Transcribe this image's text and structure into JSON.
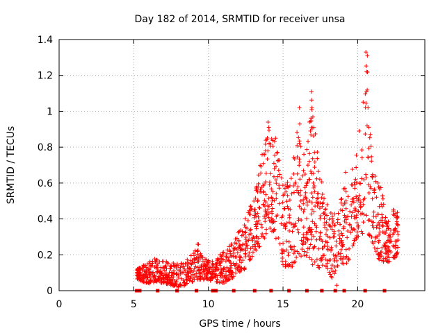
{
  "chart_data": {
    "type": "scatter",
    "title": "Day 182 of 2014, SRMTID for receiver unsa",
    "xlabel": "GPS time / hours",
    "ylabel": "SRMTID / TECUs",
    "xlim": [
      0,
      24.5
    ],
    "ylim": [
      0,
      1.4
    ],
    "xticks": [
      0,
      5,
      10,
      15,
      20
    ],
    "yticks": [
      0,
      0.2,
      0.4,
      0.6,
      0.8,
      1,
      1.2,
      1.4
    ],
    "xtick_labels": [
      "0",
      "5",
      "10",
      "15",
      "20"
    ],
    "ytick_labels": [
      "0",
      "0.2",
      "0.4",
      "0.6",
      "0.8",
      "1",
      "1.2",
      "1.4"
    ],
    "grid": true,
    "marker": "+",
    "color": "#ff0000",
    "series": [
      {
        "name": "SRMTID",
        "envelope": [
          {
            "x": 5.2,
            "lo": 0.06,
            "hi": 0.12
          },
          {
            "x": 5.6,
            "lo": 0.05,
            "hi": 0.14
          },
          {
            "x": 6.0,
            "lo": 0.04,
            "hi": 0.17
          },
          {
            "x": 6.5,
            "lo": 0.05,
            "hi": 0.18
          },
          {
            "x": 7.0,
            "lo": 0.04,
            "hi": 0.17
          },
          {
            "x": 7.5,
            "lo": 0.03,
            "hi": 0.16
          },
          {
            "x": 8.0,
            "lo": 0.02,
            "hi": 0.15
          },
          {
            "x": 8.5,
            "lo": 0.03,
            "hi": 0.17
          },
          {
            "x": 9.0,
            "lo": 0.05,
            "hi": 0.21
          },
          {
            "x": 9.3,
            "lo": 0.06,
            "hi": 0.28
          },
          {
            "x": 9.7,
            "lo": 0.06,
            "hi": 0.18
          },
          {
            "x": 10.5,
            "lo": 0.05,
            "hi": 0.17
          },
          {
            "x": 11.0,
            "lo": 0.04,
            "hi": 0.22
          },
          {
            "x": 11.5,
            "lo": 0.06,
            "hi": 0.26
          },
          {
            "x": 12.0,
            "lo": 0.1,
            "hi": 0.34
          },
          {
            "x": 12.5,
            "lo": 0.12,
            "hi": 0.42
          },
          {
            "x": 13.0,
            "lo": 0.2,
            "hi": 0.5
          },
          {
            "x": 13.5,
            "lo": 0.25,
            "hi": 0.72
          },
          {
            "x": 13.8,
            "lo": 0.3,
            "hi": 0.86
          },
          {
            "x": 14.1,
            "lo": 0.34,
            "hi": 0.94
          },
          {
            "x": 14.5,
            "lo": 0.3,
            "hi": 0.85
          },
          {
            "x": 15.0,
            "lo": 0.14,
            "hi": 0.62
          },
          {
            "x": 15.5,
            "lo": 0.12,
            "hi": 0.6
          },
          {
            "x": 16.0,
            "lo": 0.18,
            "hi": 1.02
          },
          {
            "x": 16.5,
            "lo": 0.2,
            "hi": 0.7
          },
          {
            "x": 16.9,
            "lo": 0.15,
            "hi": 1.11
          },
          {
            "x": 17.3,
            "lo": 0.12,
            "hi": 0.82
          },
          {
            "x": 17.8,
            "lo": 0.15,
            "hi": 0.52
          },
          {
            "x": 18.3,
            "lo": 0.06,
            "hi": 0.42
          },
          {
            "x": 18.8,
            "lo": 0.16,
            "hi": 0.5
          },
          {
            "x": 19.3,
            "lo": 0.14,
            "hi": 0.66
          },
          {
            "x": 19.8,
            "lo": 0.28,
            "hi": 0.7
          },
          {
            "x": 20.1,
            "lo": 0.3,
            "hi": 0.88
          },
          {
            "x": 20.6,
            "lo": 0.34,
            "hi": 1.33
          },
          {
            "x": 21.0,
            "lo": 0.26,
            "hi": 0.7
          },
          {
            "x": 21.5,
            "lo": 0.16,
            "hi": 0.62
          },
          {
            "x": 22.0,
            "lo": 0.16,
            "hi": 0.4
          },
          {
            "x": 22.4,
            "lo": 0.17,
            "hi": 0.46
          },
          {
            "x": 22.7,
            "lo": 0.2,
            "hi": 0.44
          }
        ],
        "peaks": [
          {
            "x": 13.3,
            "y": 0.55
          },
          {
            "x": 14.0,
            "y": 0.94
          },
          {
            "x": 14.5,
            "y": 0.85
          },
          {
            "x": 16.1,
            "y": 1.02
          },
          {
            "x": 16.9,
            "y": 1.11
          },
          {
            "x": 19.2,
            "y": 0.66
          },
          {
            "x": 20.1,
            "y": 0.89
          },
          {
            "x": 20.55,
            "y": 1.33
          },
          {
            "x": 20.65,
            "y": 1.31
          },
          {
            "x": 20.6,
            "y": 1.22
          },
          {
            "x": 20.6,
            "y": 1.11
          },
          {
            "x": 18.6,
            "y": 0.03
          }
        ],
        "zero_markers_x": [
          5.2,
          5.4,
          6.6,
          7.9,
          9.2,
          10.3,
          10.5,
          11.7,
          13.1,
          14.2,
          15.4,
          16.6,
          17.6,
          18.5,
          19.1,
          20.5,
          21.8
        ]
      }
    ]
  }
}
